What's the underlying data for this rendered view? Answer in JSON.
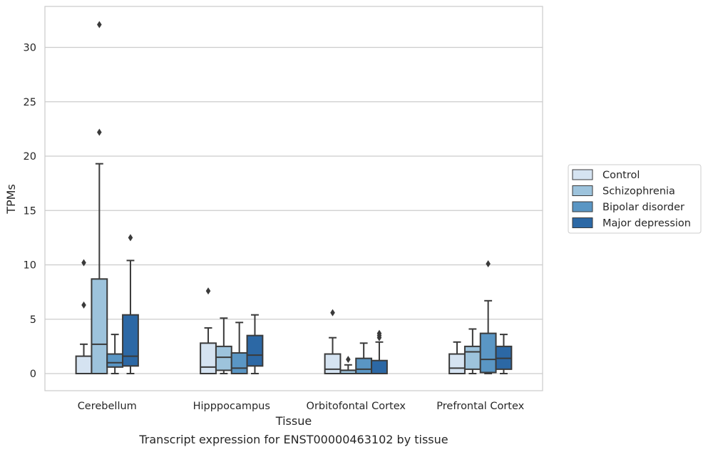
{
  "chart_data": {
    "type": "box",
    "title": "",
    "caption": "Transcript expression for ENST00000463102 by tissue",
    "xlabel": "Tissue",
    "ylabel": "TPMs",
    "ylim": [
      -1.5,
      33.5
    ],
    "yticks": [
      0,
      5,
      10,
      15,
      20,
      25,
      30
    ],
    "grid": true,
    "legend_position": "right",
    "categories": [
      "Cerebellum",
      "Hipppocampus",
      "Orbitofontal Cortex",
      "Prefrontal Cortex"
    ],
    "series": [
      {
        "name": "Control",
        "color": "#d5e3f1",
        "boxes": [
          {
            "whislo": 0,
            "q1": 0,
            "med": 0,
            "q3": 1.6,
            "whishi": 2.7,
            "fliers": [
              6.3,
              10.2
            ]
          },
          {
            "whislo": 0,
            "q1": 0,
            "med": 0.6,
            "q3": 2.8,
            "whishi": 4.2,
            "fliers": [
              7.6
            ]
          },
          {
            "whislo": 0,
            "q1": 0,
            "med": 0.4,
            "q3": 1.8,
            "whishi": 3.3,
            "fliers": [
              5.6
            ]
          },
          {
            "whislo": 0,
            "q1": 0,
            "med": 0.5,
            "q3": 1.8,
            "whishi": 2.9,
            "fliers": []
          }
        ]
      },
      {
        "name": "Schizophrenia",
        "color": "#9dc3dc",
        "boxes": [
          {
            "whislo": 0,
            "q1": 0,
            "med": 2.7,
            "q3": 8.7,
            "whishi": 19.3,
            "fliers": [
              22.2,
              32.1
            ]
          },
          {
            "whislo": 0,
            "q1": 0.3,
            "med": 1.5,
            "q3": 2.5,
            "whishi": 5.1,
            "fliers": []
          },
          {
            "whislo": 0,
            "q1": 0,
            "med": 0.3,
            "q3": 0.3,
            "whishi": 0.8,
            "fliers": [
              1.3
            ]
          },
          {
            "whislo": 0,
            "q1": 0.4,
            "med": 2.0,
            "q3": 2.5,
            "whishi": 4.1,
            "fliers": []
          }
        ]
      },
      {
        "name": "Bipolar disorder",
        "color": "#5a96c4",
        "boxes": [
          {
            "whislo": 0,
            "q1": 0.6,
            "med": 1.0,
            "q3": 1.8,
            "whishi": 3.6,
            "fliers": []
          },
          {
            "whislo": 0,
            "q1": 0,
            "med": 0.5,
            "q3": 1.9,
            "whishi": 4.7,
            "fliers": []
          },
          {
            "whislo": 0,
            "q1": 0,
            "med": 0.4,
            "q3": 1.4,
            "whishi": 2.8,
            "fliers": []
          },
          {
            "whislo": 0,
            "q1": 0.1,
            "med": 1.3,
            "q3": 3.7,
            "whishi": 6.7,
            "fliers": [
              10.1
            ]
          }
        ]
      },
      {
        "name": "Major depression",
        "color": "#2c68a5",
        "boxes": [
          {
            "whislo": 0,
            "q1": 0.7,
            "med": 1.6,
            "q3": 5.4,
            "whishi": 10.4,
            "fliers": [
              12.5
            ]
          },
          {
            "whislo": 0,
            "q1": 0.7,
            "med": 1.7,
            "q3": 3.5,
            "whishi": 5.4,
            "fliers": []
          },
          {
            "whislo": 0,
            "q1": 0,
            "med": 0,
            "q3": 1.2,
            "whishi": 2.9,
            "fliers": [
              3.3,
              3.5,
              3.7
            ]
          },
          {
            "whislo": 0,
            "q1": 0.4,
            "med": 1.4,
            "q3": 2.5,
            "whishi": 3.6,
            "fliers": []
          }
        ]
      }
    ]
  }
}
